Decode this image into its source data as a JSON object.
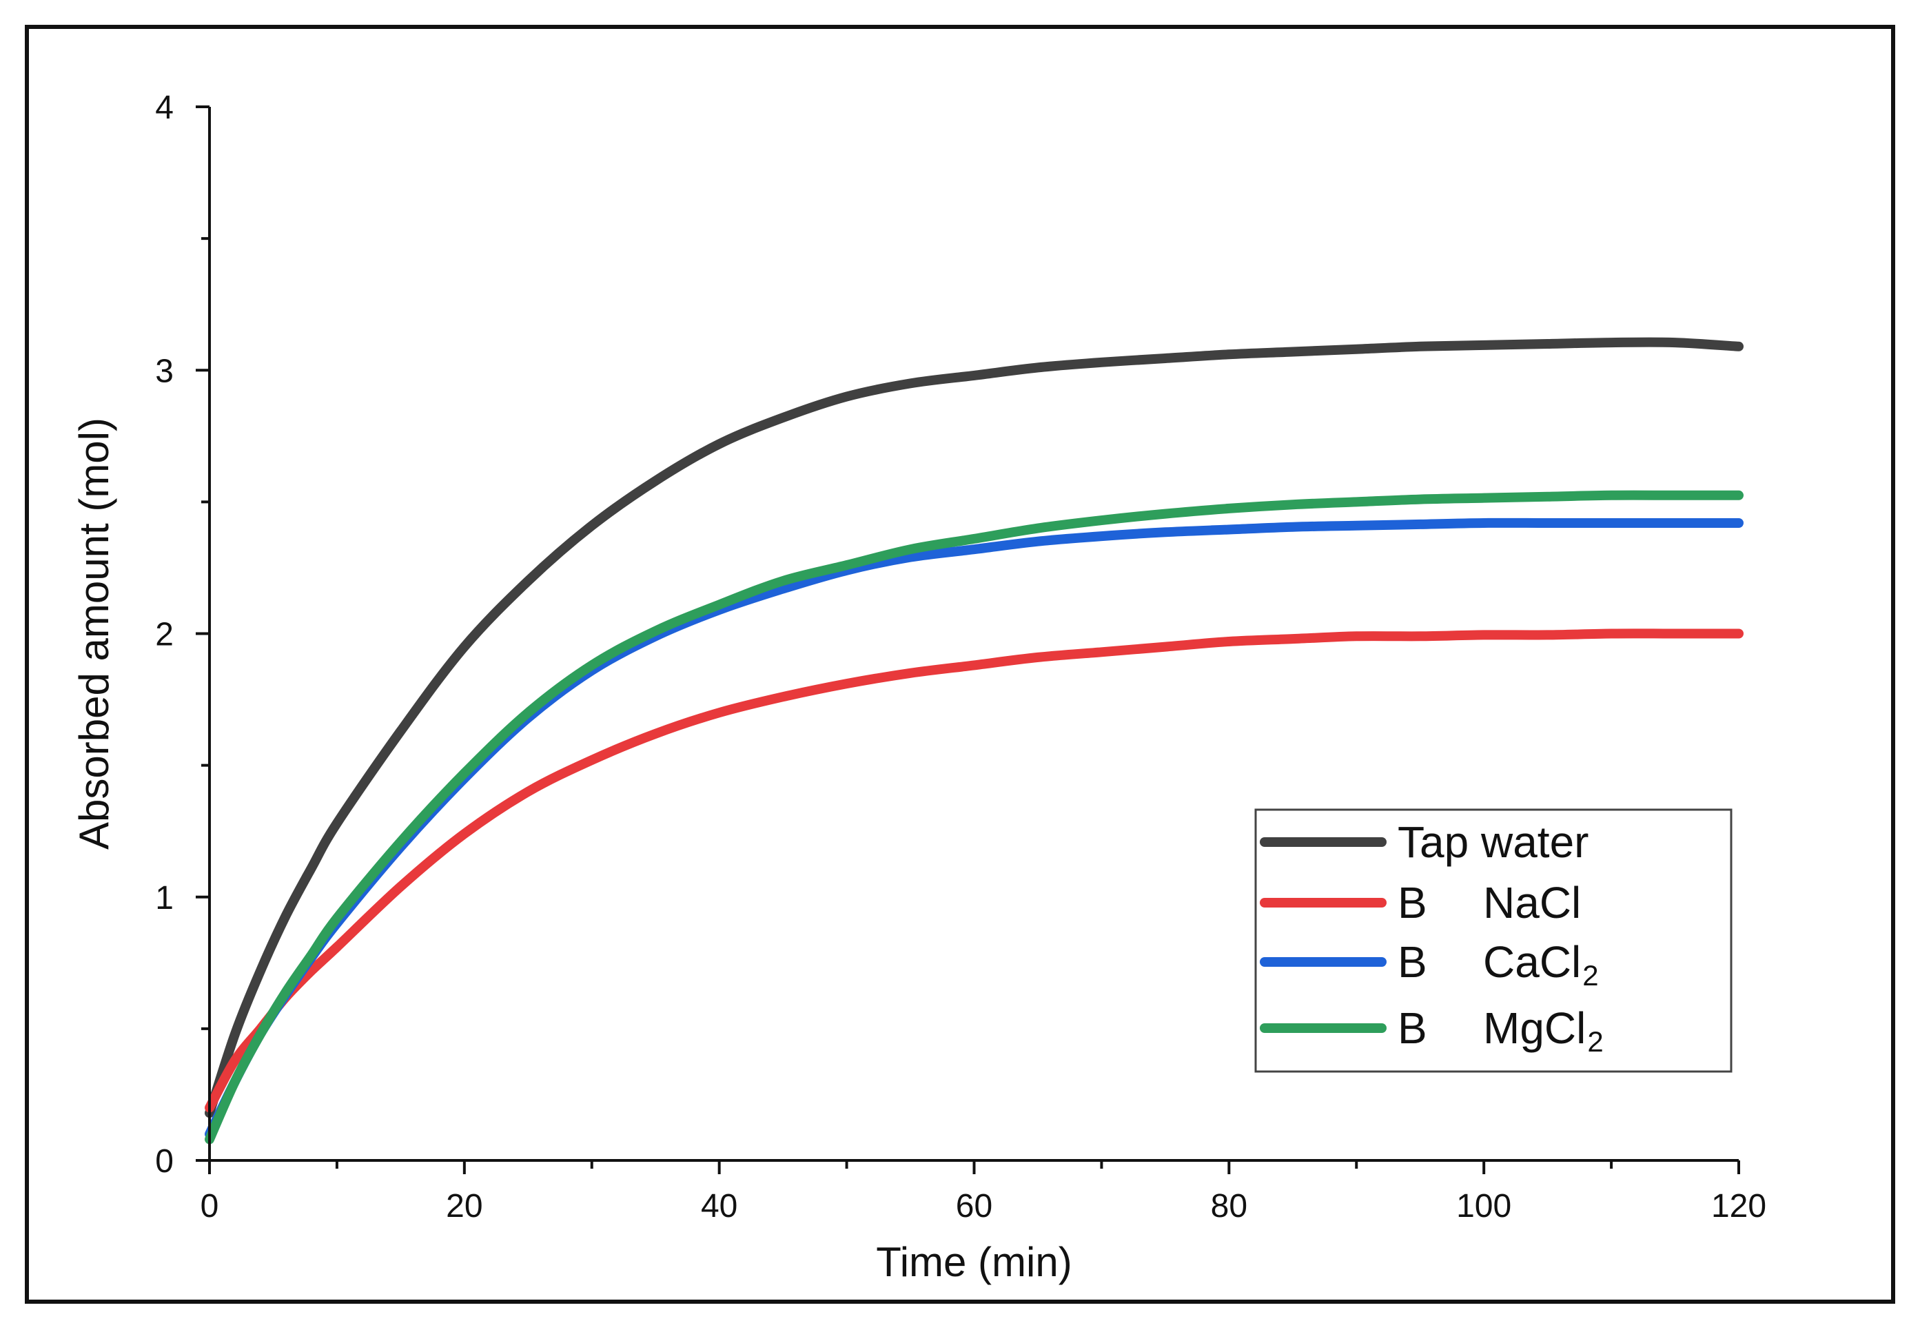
{
  "chart_data": {
    "type": "line",
    "title": "",
    "xlabel": "Time (min)",
    "ylabel": "Absorbed amount (mol)",
    "xlim": [
      0,
      120
    ],
    "ylim": [
      0,
      4
    ],
    "x_ticks": [
      0,
      20,
      40,
      60,
      80,
      100,
      120
    ],
    "x_tick_labels": [
      "0",
      "20",
      "40",
      "60",
      "80",
      "100",
      "120"
    ],
    "y_ticks": [
      0,
      1,
      2,
      3,
      4
    ],
    "y_tick_labels": [
      "0",
      "1",
      "2",
      "3",
      "4"
    ],
    "grid": false,
    "legend_position": "bottom-right",
    "x": [
      0,
      2,
      4,
      6,
      8,
      10,
      15,
      20,
      25,
      30,
      35,
      40,
      45,
      50,
      55,
      60,
      65,
      70,
      75,
      80,
      85,
      90,
      95,
      100,
      105,
      110,
      115,
      120
    ],
    "series": [
      {
        "name": "Tap water",
        "legend_prefix": "",
        "legend_label": "Tap water",
        "legend_sub": "",
        "color": "#404040",
        "values": [
          0.18,
          0.48,
          0.72,
          0.93,
          1.11,
          1.28,
          1.63,
          1.95,
          2.2,
          2.41,
          2.58,
          2.72,
          2.82,
          2.9,
          2.95,
          2.98,
          3.01,
          3.03,
          3.045,
          3.06,
          3.07,
          3.08,
          3.09,
          3.095,
          3.1,
          3.105,
          3.105,
          3.09
        ]
      },
      {
        "name": "B NaCl",
        "legend_prefix": "B",
        "legend_label": "NaCl",
        "legend_sub": "",
        "color": "#e8393b",
        "values": [
          0.2,
          0.38,
          0.5,
          0.62,
          0.72,
          0.81,
          1.04,
          1.24,
          1.4,
          1.52,
          1.62,
          1.7,
          1.76,
          1.81,
          1.85,
          1.88,
          1.91,
          1.93,
          1.95,
          1.97,
          1.98,
          1.99,
          1.99,
          1.995,
          1.995,
          2.0,
          2.0,
          2.0
        ]
      },
      {
        "name": "B CaCl2",
        "legend_prefix": "B",
        "legend_label": "CaCl",
        "legend_sub": "2",
        "color": "#1e62d8",
        "values": [
          0.1,
          0.3,
          0.48,
          0.63,
          0.77,
          0.9,
          1.19,
          1.45,
          1.68,
          1.86,
          1.99,
          2.09,
          2.17,
          2.24,
          2.29,
          2.32,
          2.35,
          2.37,
          2.385,
          2.395,
          2.405,
          2.41,
          2.415,
          2.42,
          2.42,
          2.42,
          2.42,
          2.42
        ]
      },
      {
        "name": "B MgCl2",
        "legend_prefix": "B",
        "legend_label": "MgCl",
        "legend_sub": "2",
        "color": "#2e9e5b",
        "values": [
          0.08,
          0.3,
          0.48,
          0.64,
          0.78,
          0.92,
          1.21,
          1.47,
          1.7,
          1.88,
          2.01,
          2.11,
          2.2,
          2.26,
          2.32,
          2.36,
          2.4,
          2.43,
          2.455,
          2.475,
          2.49,
          2.5,
          2.51,
          2.515,
          2.52,
          2.525,
          2.525,
          2.525
        ]
      }
    ]
  }
}
